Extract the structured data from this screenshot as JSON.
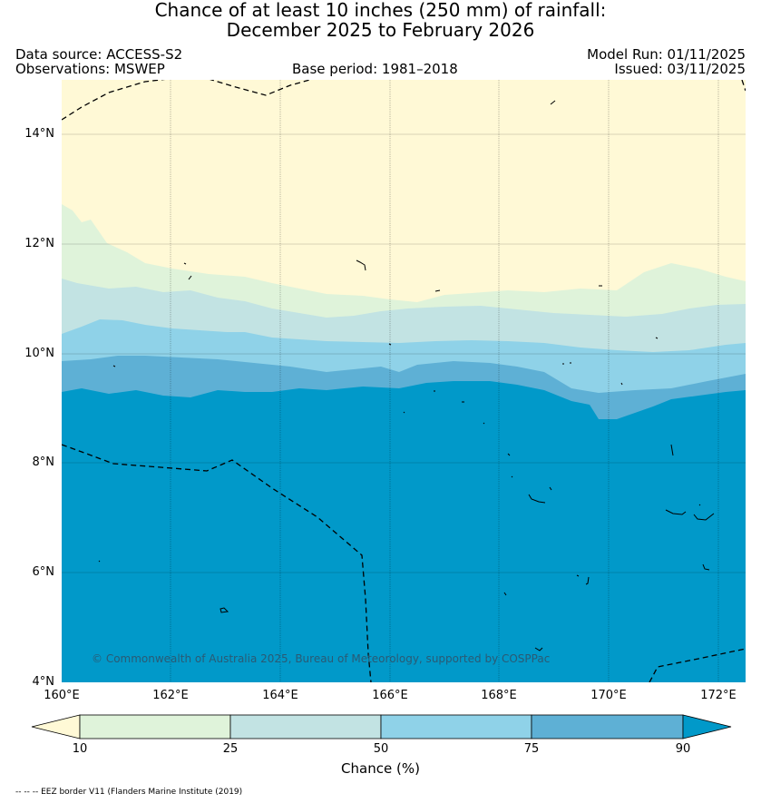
{
  "title": {
    "line1": "Chance of at least 10 inches (250  mm) of rainfall:",
    "line2": "December 2025 to February 2026"
  },
  "meta": {
    "data_source": "Data source: ACCESS-S2",
    "observations": "Observations: MSWEP",
    "base_period": "Base period: 1981–2018",
    "model_run": "Model Run: 01/11/2025",
    "issued": "Issued: 03/11/2025"
  },
  "map": {
    "latitude_labels": [
      "14°N",
      "12°N",
      "10°N",
      "8°N",
      "6°N",
      "4°N"
    ],
    "longitude_labels": [
      "160°E",
      "162°E",
      "164°E",
      "166°E",
      "168°E",
      "170°E",
      "172°E"
    ],
    "copyright": "© Commonwealth of Australia 2025, Bureau of Meteorology, supported by COSPPac",
    "colors": {
      "below_10": "#fff9d6",
      "10_25": "#dff3da",
      "25_50": "#c2e3e3",
      "50_75": "#8fd2e8",
      "75_90": "#5eb0d5",
      "above_90": "#0199c9"
    }
  },
  "colorbar": {
    "ticks": [
      "10",
      "25",
      "50",
      "75",
      "90"
    ],
    "label": "Chance (%)"
  },
  "footnote": "-- -- -- EEZ border V11 (Flanders Marine Institute (2019)"
}
